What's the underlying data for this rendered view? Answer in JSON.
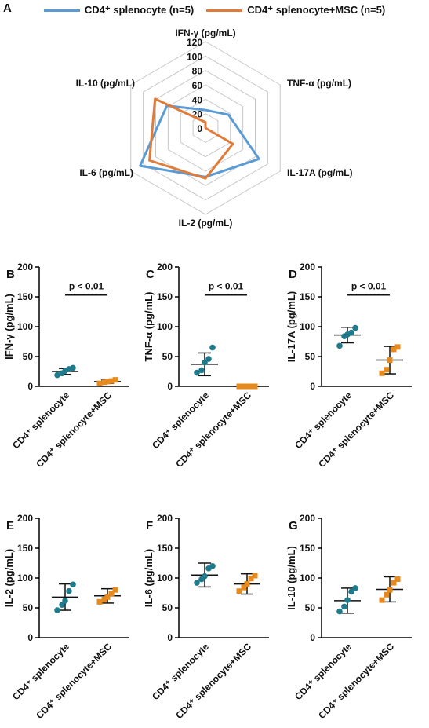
{
  "colors": {
    "blue": "#5b9bd5",
    "orange": "#e07b39",
    "teal": "#1f7a8c",
    "dot_orange": "#e68a1e",
    "grid": "#c8c8c8",
    "axis": "#000000"
  },
  "legend": {
    "series1": "CD4⁺ splenocyte (n=5)",
    "series2": "CD4⁺ splenocyte+MSC (n=5)"
  },
  "panels": {
    "a": "A",
    "b": "B",
    "c": "C",
    "d": "D",
    "e": "E",
    "f": "F",
    "g": "G"
  },
  "chart_data": [
    {
      "panel": "A",
      "type": "radar",
      "axes": [
        "IFN-γ (pg/mL)",
        "TNF-α (pg/mL)",
        "IL-17A (pg/mL)",
        "IL-2 (pg/mL)",
        "IL-6 (pg/mL)",
        "IL-10 (pg/mL)"
      ],
      "ticks": [
        0,
        20,
        40,
        60,
        80,
        100,
        120
      ],
      "range": [
        0,
        120
      ],
      "series": [
        {
          "name": "CD4⁺ splenocyte (n=5)",
          "color": "#5b9bd5",
          "values": [
            25,
            37,
            86,
            68,
            105,
            62
          ]
        },
        {
          "name": "CD4⁺ splenocyte+MSC (n=5)",
          "color": "#e07b39",
          "values": [
            8,
            0,
            44,
            70,
            90,
            81
          ]
        }
      ]
    },
    {
      "panel": "B",
      "type": "scatter",
      "ylabel": "IFN-γ (pg/mL)",
      "ylim": [
        0,
        200
      ],
      "yticks": [
        0,
        50,
        100,
        150,
        200
      ],
      "categories": [
        "CD4⁺ splenocyte",
        "CD4⁺ splenocyte+MSC"
      ],
      "groups": [
        {
          "points": [
            19,
            22,
            26,
            29,
            31
          ],
          "mean": 25,
          "sd": 5
        },
        {
          "points": [
            5,
            7,
            8,
            9,
            11
          ],
          "mean": 8,
          "sd": 3
        }
      ],
      "annotation": "p < 0.01"
    },
    {
      "panel": "C",
      "type": "scatter",
      "ylabel": "TNF-α (pg/mL)",
      "ylim": [
        0,
        200
      ],
      "yticks": [
        0,
        50,
        100,
        150,
        200
      ],
      "categories": [
        "CD4⁺ splenocyte",
        "CD4⁺ splenocyte+MSC"
      ],
      "groups": [
        {
          "points": [
            23,
            27,
            40,
            46,
            65
          ],
          "mean": 37,
          "sd": 19
        },
        {
          "points": [
            0,
            0,
            0,
            0,
            0
          ],
          "mean": 0,
          "sd": 0
        }
      ],
      "annotation": "p < 0.01"
    },
    {
      "panel": "D",
      "type": "scatter",
      "ylabel": "IL-17A (pg/mL)",
      "ylim": [
        0,
        200
      ],
      "yticks": [
        0,
        50,
        100,
        150,
        200
      ],
      "categories": [
        "CD4⁺ splenocyte",
        "CD4⁺ splenocyte+MSC"
      ],
      "groups": [
        {
          "points": [
            68,
            84,
            87,
            90,
            98
          ],
          "mean": 86,
          "sd": 13
        },
        {
          "points": [
            22,
            28,
            44,
            62,
            66
          ],
          "mean": 44,
          "sd": 23
        }
      ],
      "annotation": "p < 0.01"
    },
    {
      "panel": "E",
      "type": "scatter",
      "ylabel": "IL-2 (pg/mL)",
      "ylim": [
        0,
        200
      ],
      "yticks": [
        0,
        50,
        100,
        150,
        200
      ],
      "categories": [
        "CD4⁺ splenocyte",
        "CD4⁺ splenocyte+MSC"
      ],
      "groups": [
        {
          "points": [
            46,
            55,
            62,
            78,
            89
          ],
          "mean": 68,
          "sd": 22
        },
        {
          "points": [
            60,
            64,
            68,
            74,
            80
          ],
          "mean": 70,
          "sd": 12
        }
      ],
      "annotation": ""
    },
    {
      "panel": "F",
      "type": "scatter",
      "ylabel": "IL-6 (pg/mL)",
      "ylim": [
        0,
        200
      ],
      "yticks": [
        0,
        50,
        100,
        150,
        200
      ],
      "categories": [
        "CD4⁺ splenocyte",
        "CD4⁺ splenocyte+MSC"
      ],
      "groups": [
        {
          "points": [
            92,
            98,
            103,
            116,
            120
          ],
          "mean": 105,
          "sd": 20
        },
        {
          "points": [
            78,
            84,
            90,
            99,
            104
          ],
          "mean": 90,
          "sd": 17
        }
      ],
      "annotation": ""
    },
    {
      "panel": "G",
      "type": "scatter",
      "ylabel": "IL-10 (pg/mL)",
      "ylim": [
        0,
        200
      ],
      "yticks": [
        0,
        50,
        100,
        150,
        200
      ],
      "categories": [
        "CD4⁺ splenocyte",
        "CD4⁺ splenocyte+MSC"
      ],
      "groups": [
        {
          "points": [
            44,
            52,
            63,
            77,
            83
          ],
          "mean": 62,
          "sd": 21
        },
        {
          "points": [
            63,
            72,
            80,
            92,
            98
          ],
          "mean": 81,
          "sd": 21
        }
      ],
      "annotation": ""
    }
  ]
}
